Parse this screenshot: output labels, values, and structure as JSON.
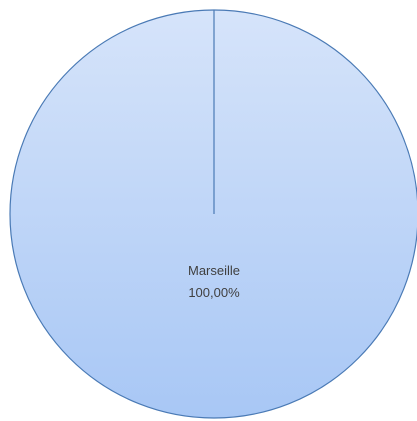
{
  "chart_data": {
    "type": "pie",
    "categories": [
      "Marseille"
    ],
    "values": [
      1.0
    ],
    "data_labels": [
      {
        "category": "Marseille",
        "percent": "100,00%"
      }
    ],
    "colors": {
      "fill_top": "#d6e4fa",
      "fill_bottom": "#a8c7f5",
      "stroke": "#4a7ab5"
    }
  }
}
